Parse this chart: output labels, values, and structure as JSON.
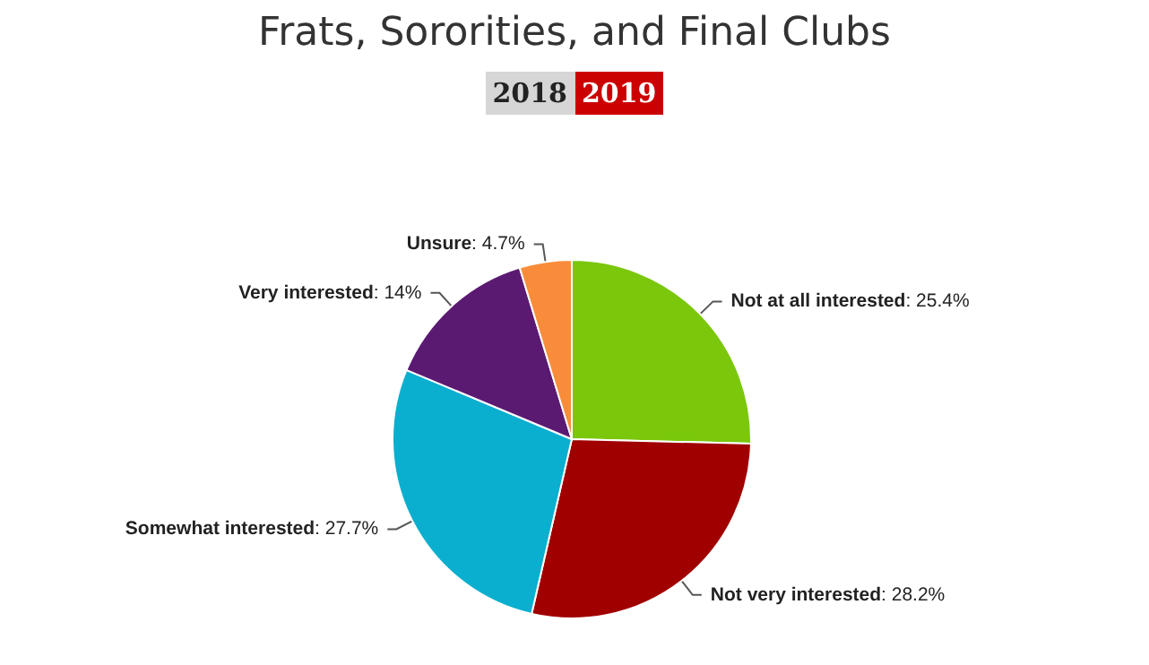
{
  "chart_data": {
    "type": "pie",
    "title": "Frats, Sororities, and Final Clubs",
    "annotations": [
      "2018",
      "2019"
    ],
    "categories": [
      "Not at all interested",
      "Not very interested",
      "Somewhat interested",
      "Very interested",
      "Unsure"
    ],
    "values": [
      25.4,
      28.2,
      27.7,
      14,
      4.7
    ],
    "value_labels": [
      ": 25.4%",
      ": 28.2%",
      ": 27.7%",
      ": 14%",
      ": 4.7%"
    ],
    "colors": [
      "#7ac70c",
      "#a00000",
      "#0aafcf",
      "#5b1a72",
      "#f98c3a"
    ],
    "legend": false
  }
}
